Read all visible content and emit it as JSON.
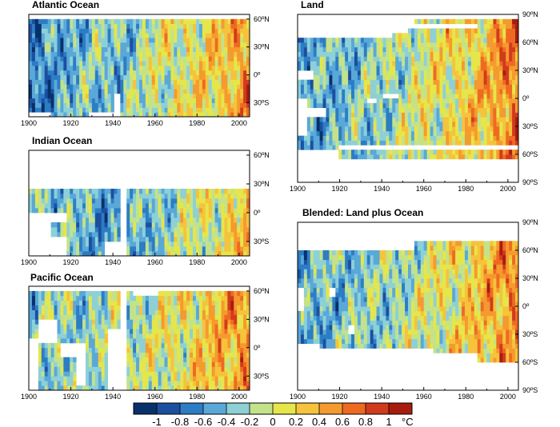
{
  "chart_data": {
    "type": "heatmap",
    "colorbar": {
      "ticks": [
        "-1",
        "-0.8",
        "-0.6",
        "-0.4",
        "-0.2",
        "0",
        "0.2",
        "0.4",
        "0.6",
        "0.8",
        "1"
      ],
      "unit": "°C",
      "range": [
        -1,
        1
      ],
      "colors": [
        "#08306b",
        "#1c4fa0",
        "#2c7dc4",
        "#5aa8d8",
        "#8dd0d6",
        "#c3e28a",
        "#e6e64a",
        "#f5c33c",
        "#f59a2e",
        "#ee6a22",
        "#d23a1c",
        "#a81c10"
      ]
    },
    "panels": [
      {
        "key": "atlantic",
        "title": "Atlantic Ocean",
        "x_ticks": [
          "1900",
          "1920",
          "1940",
          "1960",
          "1980",
          "2000"
        ],
        "y_ticks": [
          "60ºN",
          "30ºN",
          "0º",
          "30ºS"
        ],
        "xlim": [
          1900,
          2005
        ],
        "ylim": [
          -45,
          65
        ],
        "lat_extent": [
          -45,
          60
        ],
        "bias": [
          -0.75,
          -0.45,
          -0.3,
          -0.35,
          -0.05,
          0.05,
          0.2,
          0.5
        ],
        "seed": 3,
        "white": [
          {
            "years": [
              1900,
              1906
            ],
            "lats": [
              60,
              65
            ]
          },
          {
            "years": [
              1900,
              1910
            ],
            "lats": [
              -45,
              -38
            ]
          },
          {
            "years": [
              1941,
              1944
            ],
            "lats": [
              -45,
              -20
            ]
          },
          {
            "years": [
              1928,
              1940
            ],
            "lats": [
              -45,
              -42
            ]
          }
        ]
      },
      {
        "key": "indian",
        "title": "Indian Ocean",
        "x_ticks": [
          "1900",
          "1920",
          "1940",
          "1960",
          "1980",
          "2000"
        ],
        "y_ticks": [
          "60ºN",
          "30ºN",
          "0º",
          "30ºS"
        ],
        "xlim": [
          1900,
          2005
        ],
        "ylim": [
          -45,
          65
        ],
        "lat_extent": [
          -45,
          25
        ],
        "bias": [
          -0.2,
          -0.3,
          -0.45,
          -0.5,
          -0.3,
          -0.1,
          0.05,
          0.3
        ],
        "seed": 11,
        "white": [
          {
            "years": [
              1900,
              1911
            ],
            "lats": [
              -45,
              2
            ]
          },
          {
            "years": [
              1911,
              1918
            ],
            "lats": [
              -45,
              -25
            ]
          },
          {
            "years": [
              1936,
              1946
            ],
            "lats": [
              -45,
              -30
            ]
          },
          {
            "years": [
              1943,
              1946
            ],
            "lats": [
              -45,
              25
            ]
          },
          {
            "years": [
              1911,
              1918
            ],
            "lats": [
              -10,
              -2
            ]
          }
        ]
      },
      {
        "key": "pacific",
        "title": "Pacific Ocean",
        "x_ticks": [
          "1900",
          "1920",
          "1940",
          "1960",
          "1980",
          "2000"
        ],
        "y_ticks": [
          "60ºN",
          "30ºN",
          "0º",
          "30ºS"
        ],
        "xlim": [
          1900,
          2005
        ],
        "ylim": [
          -45,
          65
        ],
        "lat_extent": [
          -45,
          60
        ],
        "bias": [
          -0.3,
          -0.2,
          -0.25,
          -0.2,
          -0.05,
          0.1,
          0.3,
          0.5
        ],
        "seed": 23,
        "white": [
          {
            "years": [
              1900,
              1905
            ],
            "lats": [
              -45,
              10
            ]
          },
          {
            "years": [
              1905,
              1913
            ],
            "lats": [
              5,
              30
            ]
          },
          {
            "years": [
              1915,
              1922
            ],
            "lats": [
              -12,
              5
            ]
          },
          {
            "years": [
              1922,
              1927
            ],
            "lats": [
              -40,
              5
            ]
          },
          {
            "years": [
              1938,
              1945
            ],
            "lats": [
              -45,
              18
            ]
          },
          {
            "years": [
              1943,
              1946
            ],
            "lats": [
              -45,
              60
            ]
          },
          {
            "years": [
              1950,
              1962
            ],
            "lats": [
              57,
              60
            ]
          }
        ]
      },
      {
        "key": "land",
        "title": "Land",
        "x_ticks": [
          "1900",
          "1920",
          "1940",
          "1960",
          "1980",
          "2000"
        ],
        "y_ticks": [
          "90ºN",
          "60ºN",
          "30ºN",
          "0º",
          "30ºS",
          "60ºS",
          "90ºS"
        ],
        "xlim": [
          1900,
          2005
        ],
        "ylim": [
          -90,
          90
        ],
        "lat_extent": [
          -65,
          85
        ],
        "bias": [
          -0.5,
          -0.4,
          -0.3,
          -0.2,
          0.0,
          0.1,
          0.3,
          0.65
        ],
        "seed": 37,
        "white": [
          {
            "years": [
              1900,
              1947
            ],
            "lats": [
              75,
              85
            ]
          },
          {
            "years": [
              1947,
              1955
            ],
            "lats": [
              80,
              85
            ]
          },
          {
            "years": [
              1947,
              1985
            ],
            "lats": [
              75,
              80
            ]
          },
          {
            "years": [
              1900,
              1945
            ],
            "lats": [
              64,
              75
            ]
          },
          {
            "years": [
              1945,
              1953
            ],
            "lats": [
              70,
              75
            ]
          },
          {
            "years": [
              1900,
              1920
            ],
            "lats": [
              -65,
              -55
            ]
          },
          {
            "years": [
              1920,
              2005
            ],
            "lats": [
              -55,
              -50
            ]
          },
          {
            "years": [
              1900,
              1905
            ],
            "lats": [
              -40,
              -2
            ]
          },
          {
            "years": [
              1900,
              1914
            ],
            "lats": [
              -20,
              -12
            ]
          },
          {
            "years": [
              1900,
              1908
            ],
            "lats": [
              20,
              30
            ]
          },
          {
            "years": [
              1933,
              1938
            ],
            "lats": [
              -5,
              0
            ]
          },
          {
            "years": [
              1940,
              1948
            ],
            "lats": [
              2,
              5
            ]
          }
        ]
      },
      {
        "key": "blended",
        "title": "Blended: Land plus Ocean",
        "x_ticks": [
          "1900",
          "1920",
          "1940",
          "1960",
          "1980",
          "2000"
        ],
        "y_ticks": [
          "90ºN",
          "60ºN",
          "30ºN",
          "0º",
          "30ºS",
          "60ºS",
          "90ºS"
        ],
        "xlim": [
          1900,
          2005
        ],
        "ylim": [
          -90,
          90
        ],
        "lat_extent": [
          -60,
          70
        ],
        "bias": [
          -0.45,
          -0.35,
          -0.3,
          -0.2,
          -0.05,
          0.1,
          0.3,
          0.55
        ],
        "seed": 51,
        "white": [
          {
            "years": [
              1900,
              1955
            ],
            "lats": [
              62,
              70
            ]
          },
          {
            "years": [
              1900,
              1910
            ],
            "lats": [
              -60,
              -40
            ]
          },
          {
            "years": [
              1910,
              1965
            ],
            "lats": [
              -60,
              -45
            ]
          },
          {
            "years": [
              1965,
              1985
            ],
            "lats": [
              -60,
              -52
            ]
          },
          {
            "years": [
              1900,
              1903
            ],
            "lats": [
              -5,
              20
            ]
          },
          {
            "years": [
              1915,
              1918
            ],
            "lats": [
              8,
              18
            ]
          },
          {
            "years": [
              1924,
              1927
            ],
            "lats": [
              -30,
              -18
            ]
          }
        ]
      }
    ]
  }
}
